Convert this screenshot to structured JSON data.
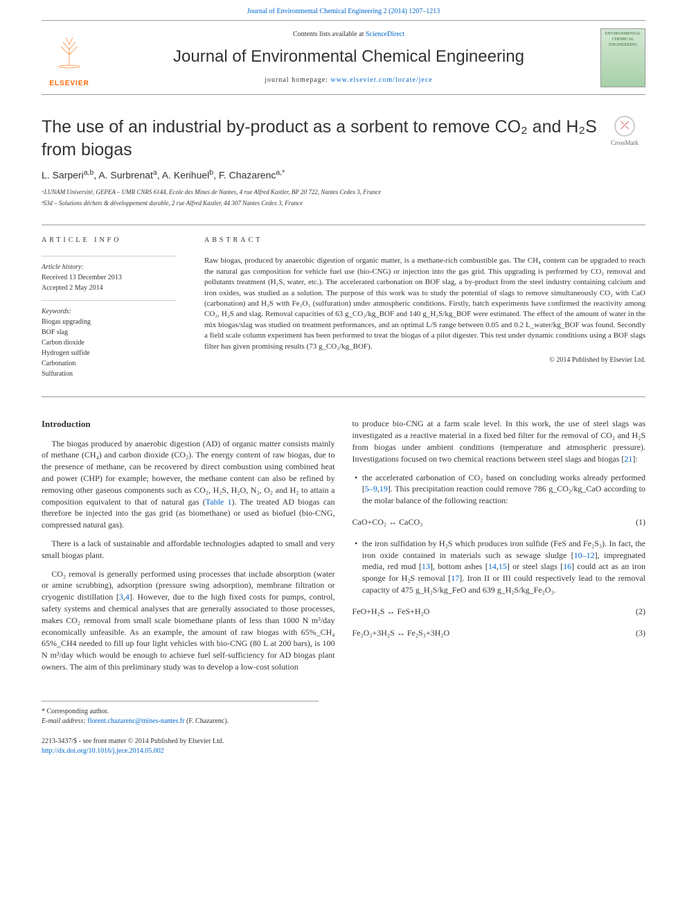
{
  "top": {
    "journal_ref": "Journal of Environmental Chemical Engineering 2 (2014) 1207–1213"
  },
  "header": {
    "contents_prefix": "Contents lists available at ",
    "contents_link": "ScienceDirect",
    "journal_name": "Journal of Environmental Chemical Engineering",
    "homepage_prefix": "journal homepage: ",
    "homepage_link": "www.elsevier.com/locate/jece",
    "publisher": "ELSEVIER",
    "cover_line1": "ENVIRONMENTAL",
    "cover_line2": "CHEMICAL",
    "cover_line3": "ENGINEERING"
  },
  "crossmark": {
    "label": "CrossMark"
  },
  "title": "The use of an industrial by-product as a sorbent to remove CO₂ and H₂S from biogas",
  "authors_html": "L. Sarperi<sup>a,b</sup>,  A. Surbrenat<sup>a</sup>,  A. Kerihuel<sup>b</sup>,  F. Chazarenc<sup>a,*</sup>",
  "affiliations": {
    "a": "ᵃLUNAM Université, GEPEA – UMR CNRS 6144, Ecole des Mines de Nantes, 4 rue Alfred Kastler, BP 20 722, Nantes Cedex 3, France",
    "b": "ᵇS3d – Solutions déchets & développement durable, 2 rue Alfred Kastler, 44 307 Nantes Cedex 3, France"
  },
  "info": {
    "header": "ARTICLE INFO",
    "history_label": "Article history:",
    "received": "Received 13 December 2013",
    "accepted": "Accepted 2 May 2014",
    "keywords_label": "Keywords:",
    "keywords": [
      "Biogas upgrading",
      "BOF slag",
      "Carbon dioxide",
      "Hydrogen sulfide",
      "Carbonation",
      "Sulfuration"
    ]
  },
  "abstract": {
    "header": "ABSTRACT",
    "text": "Raw biogas, produced by anaerobic digestion of organic matter, is a methane-rich combustible gas. The CH₄ content can be upgraded to reach the natural gas composition for vehicle fuel use (bio-CNG) or injection into the gas grid. This upgrading is performed by CO₂ removal and pollutants treatment (H₂S, water, etc.). The accelerated carbonation on BOF slag, a by-product from the steel industry containing calcium and iron oxides, was studied as a solution. The purpose of this work was to study the potential of slags to remove simultaneously CO₂ with CaO (carbonation) and H₂S with Fe₂O₃ (sulfuration) under atmospheric conditions. Firstly, batch experiments have confirmed the reactivity among CO₂, H₂S and slag. Removal capacities of 63 g_CO₂/kg_BOF and 140 g_H₂S/kg_BOF were estimated. The effect of the amount of water in the mix biogas/slag was studied on treatment performances, and an optimal L/S range between 0.05 and 0.2 L_water/kg_BOF was found. Secondly a field scale column experiment has been performed to treat the biogas of a pilot digester. This test under dynamic conditions using a BOF slags filter has given promising results (73 g_CO₂/kg_BOF).",
    "copyright": "© 2014 Published by Elsevier Ltd."
  },
  "intro": {
    "header": "Introduction",
    "p1_a": "The biogas produced by anaerobic digestion (AD) of organic matter consists mainly of methane (CH₄) and carbon dioxide (CO₂). The energy content of raw biogas, due to the presence of methane, can be recovered by direct combustion using combined heat and power (CHP) for example; however, the methane content can also be refined by removing other gaseous components such as CO₂, H₂S, H₂O, N₂, O₂ and H₂ to attain a composition equivalent to that of natural gas (",
    "p1_link": "Table 1",
    "p1_b": "). The treated AD biogas can therefore be injected into the gas grid (as biomethane) or used as biofuel (bio-CNG, compressed natural gas).",
    "p2": "There is a lack of sustainable and affordable technologies adapted to small and very small biogas plant.",
    "p3_a": "CO₂ removal is generally performed using processes that include absorption (water or amine scrubbing), adsorption (pressure swing adsorption), membrane filtration or cryogenic distillation [",
    "p3_link1": "3",
    "p3_link2": "4",
    "p3_b": "]. However, due to the high fixed costs for pumps, control, safety systems and chemical analyses that are generally associated to those processes, makes CO₂ removal from small scale biomethane plants of less than 1000 N m³/day economically unfeasible. As an example, the amount of raw biogas with 65%_CH₄ 65%_CH4 needed to fill up four light vehicles with bio-CNG (80 L at 200 bars), is 100 N m³/day which would be enough to achieve fuel self-sufficiency for AD biogas plant owners. The aim of this preliminary study was to develop a low-cost solution"
  },
  "col2": {
    "p1_a": "to produce bio-CNG at a farm scale level. In this work, the use of steel slags was investigated as a reactive material in a fixed bed filter for the removal of CO₂ and H₂S from biogas under ambient conditions (temperature and atmospheric pressure). Investigations focused on two chemical reactions between steel slags and biogas [",
    "p1_link": "21",
    "p1_b": "]:",
    "bullet1_a": "the accelerated carbonation of CO₂ based on concluding works already performed [",
    "bullet1_link1": "5–9",
    "bullet1_link2": "19",
    "bullet1_b": "]. This precipitation reaction could remove 786 g_CO₂/kg_CaO according to the molar balance of the following reaction:",
    "eq1": "CaO+CO₂ ↔ CaCO₃",
    "eq1_num": "(1)",
    "bullet2_a": "the iron sulfidation by H₂S which produces iron sulfide (FeS and Fe₂S₃). In fact, the iron oxide contained in materials such as sewage sludge [",
    "bullet2_link1": "10–12",
    "bullet2_b": "], impregnated media, red mud [",
    "bullet2_link2": "13",
    "bullet2_c": "], bottom ashes [",
    "bullet2_link3": "14",
    "bullet2_link4": "15",
    "bullet2_d": "] or steel slags [",
    "bullet2_link5": "16",
    "bullet2_e": "] could act as an iron sponge for H₂S removal [",
    "bullet2_link6": "17",
    "bullet2_f": "]. Iron II or III could respectively lead to the removal capacity of 475 g_H₂S/kg_FeO and 639 g_H₂S/kg_Fe₂O₃.",
    "eq2": "FeO+H₂S ↔ FeS+H₂O",
    "eq2_num": "(2)",
    "eq3": "Fe₂O₃+3H₂S ↔ Fe₂S₃+3H₂O",
    "eq3_num": "(3)"
  },
  "footnote": {
    "corr": "* Corresponding author.",
    "email_label": "E-mail address: ",
    "email": "florent.chazarenc@mines-nantes.fr",
    "email_suffix": " (F. Chazarenc)."
  },
  "bottom": {
    "issn": "2213-3437/$ - see front matter © 2014 Published by Elsevier Ltd.",
    "doi": "http://dx.doi.org/10.1016/j.jece.2014.05.002"
  },
  "colors": {
    "link": "#0066cc",
    "elsevier": "#ff6600",
    "text": "#333333",
    "border": "#999999"
  }
}
